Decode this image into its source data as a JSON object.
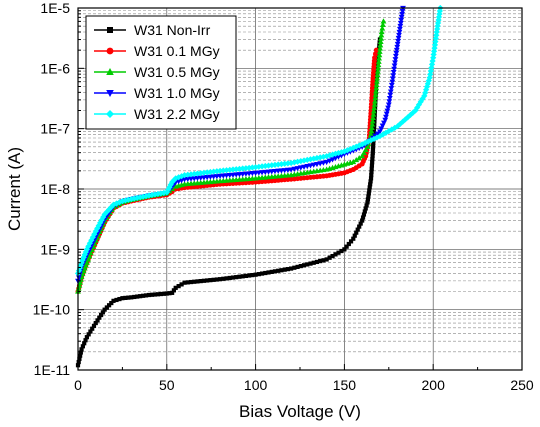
{
  "chart_data": {
    "type": "line",
    "title": "",
    "xlabel": "Bias Voltage (V)",
    "ylabel": "Current (A)",
    "xlim": [
      0,
      250
    ],
    "ylim": [
      1e-11,
      1e-05
    ],
    "yscale": "log",
    "grid": true,
    "legend_position": "top-left",
    "x_ticks": [
      "0",
      "50",
      "100",
      "150",
      "200",
      "250"
    ],
    "y_ticks": [
      "1E-11",
      "1E-10",
      "1E-9",
      "1E-8",
      "1E-7",
      "1E-6",
      "1E-5"
    ],
    "series": [
      {
        "name": "W31 Non-Irr",
        "color": "#000000",
        "marker": "square",
        "x": [
          0,
          2,
          5,
          10,
          15,
          20,
          25,
          30,
          40,
          50,
          53,
          55,
          60,
          80,
          100,
          120,
          140,
          150,
          155,
          160,
          163,
          165,
          166,
          167,
          168,
          169,
          170
        ],
        "y": [
          1.2e-11,
          2.2e-11,
          3.5e-11,
          6e-11,
          1e-10,
          1.4e-10,
          1.55e-10,
          1.6e-10,
          1.75e-10,
          1.85e-10,
          1.9e-10,
          2.3e-10,
          2.8e-10,
          3.2e-10,
          3.8e-10,
          4.8e-10,
          6.8e-10,
          1e-09,
          1.5e-09,
          3e-09,
          6e-09,
          1.5e-08,
          4e-08,
          1.5e-07,
          6e-07,
          1.5e-06,
          3e-06
        ]
      },
      {
        "name": "W31 0.1 MGy",
        "color": "#ff0000",
        "marker": "circle",
        "x": [
          0,
          2,
          5,
          10,
          15,
          20,
          25,
          30,
          40,
          50,
          53,
          55,
          60,
          80,
          100,
          120,
          140,
          150,
          155,
          160,
          162,
          164,
          165,
          166,
          167,
          168
        ],
        "y": [
          2e-10,
          3.5e-10,
          6e-10,
          1.3e-09,
          2.8e-09,
          4.8e-09,
          5.8e-09,
          6.3e-09,
          7.3e-09,
          8e-09,
          9e-09,
          1e-08,
          1.05e-08,
          1.2e-08,
          1.3e-08,
          1.45e-08,
          1.65e-08,
          1.85e-08,
          2.1e-08,
          2.6e-08,
          3.5e-08,
          7e-08,
          2e-07,
          6e-07,
          1.5e-06,
          2e-06
        ]
      },
      {
        "name": "W31 0.5 MGy",
        "color": "#00cc00",
        "marker": "triangle-up",
        "x": [
          0,
          2,
          5,
          10,
          15,
          20,
          25,
          30,
          40,
          50,
          53,
          55,
          60,
          80,
          100,
          120,
          140,
          155,
          160,
          163,
          165,
          167,
          169,
          171,
          172
        ],
        "y": [
          2e-10,
          3.5e-10,
          6e-10,
          1.4e-09,
          3e-09,
          5e-09,
          6e-09,
          6.6e-09,
          7.6e-09,
          8.5e-09,
          1e-08,
          1.1e-08,
          1.2e-08,
          1.35e-08,
          1.5e-08,
          1.7e-08,
          2.1e-08,
          2.8e-08,
          3.5e-08,
          5e-08,
          8e-08,
          2.5e-07,
          1e-06,
          4e-06,
          6e-06
        ]
      },
      {
        "name": "W31 1.0 MGy",
        "color": "#0000ff",
        "marker": "triangle-down",
        "x": [
          0,
          2,
          5,
          10,
          15,
          20,
          25,
          30,
          40,
          50,
          53,
          55,
          60,
          80,
          100,
          120,
          140,
          150,
          160,
          165,
          170,
          173,
          175,
          177,
          179,
          181,
          183
        ],
        "y": [
          3e-10,
          5e-10,
          8e-10,
          1.6e-09,
          3.2e-09,
          5.2e-09,
          6.2e-09,
          6.8e-09,
          7.8e-09,
          8.6e-09,
          1.1e-08,
          1.3e-08,
          1.45e-08,
          1.65e-08,
          1.85e-08,
          2.1e-08,
          2.8e-08,
          3.8e-08,
          5e-08,
          6.5e-08,
          9e-08,
          1.4e-07,
          2.5e-07,
          6e-07,
          1.6e-06,
          4e-06,
          1e-05
        ]
      },
      {
        "name": "W31 2.2 MGy",
        "color": "#00ffff",
        "marker": "diamond",
        "x": [
          0,
          2,
          5,
          10,
          15,
          20,
          25,
          30,
          40,
          50,
          53,
          55,
          60,
          80,
          100,
          120,
          140,
          150,
          160,
          170,
          180,
          190,
          195,
          198,
          200,
          202,
          204
        ],
        "y": [
          4e-10,
          6e-10,
          1e-09,
          2e-09,
          3.8e-09,
          5.5e-09,
          6.3e-09,
          6.8e-09,
          7.8e-09,
          8.8e-09,
          1.3e-08,
          1.5e-08,
          1.7e-08,
          2e-08,
          2.3e-08,
          2.7e-08,
          3.5e-08,
          4.2e-08,
          5.5e-08,
          7.5e-08,
          1.1e-07,
          2e-07,
          3.5e-07,
          7e-07,
          1.5e-06,
          4e-06,
          1e-05
        ]
      }
    ]
  }
}
